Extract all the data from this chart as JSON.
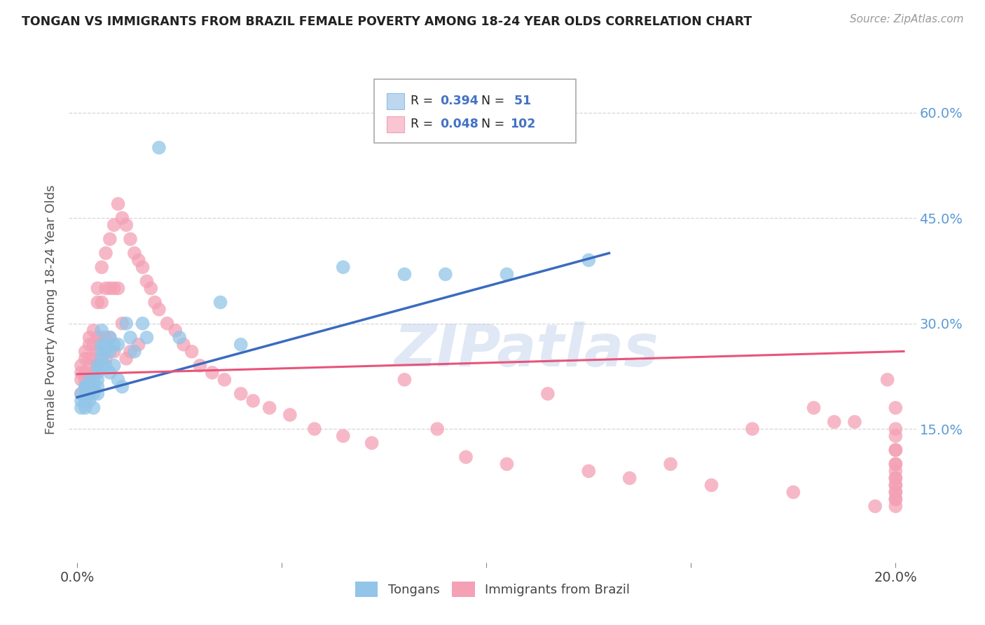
{
  "title": "TONGAN VS IMMIGRANTS FROM BRAZIL FEMALE POVERTY AMONG 18-24 YEAR OLDS CORRELATION CHART",
  "source": "Source: ZipAtlas.com",
  "ylabel": "Female Poverty Among 18-24 Year Olds",
  "watermark": "ZIPatlas",
  "tongan_color": "#92C5E8",
  "brazil_color": "#F4A0B5",
  "tongan_line_color": "#3A6BBF",
  "brazil_line_color": "#E8547A",
  "background_color": "#FFFFFF",
  "grid_color": "#CCCCCC",
  "xlim": [
    -0.002,
    0.205
  ],
  "ylim": [
    -0.04,
    0.68
  ],
  "x_ticks": [
    0.0,
    0.05,
    0.1,
    0.15,
    0.2
  ],
  "y_ticks": [
    0.15,
    0.3,
    0.45,
    0.6
  ],
  "y_tick_labels": [
    "15.0%",
    "30.0%",
    "45.0%",
    "60.0%"
  ],
  "tongan_x": [
    0.001,
    0.001,
    0.001,
    0.002,
    0.002,
    0.002,
    0.002,
    0.002,
    0.003,
    0.003,
    0.003,
    0.003,
    0.004,
    0.004,
    0.004,
    0.004,
    0.005,
    0.005,
    0.005,
    0.005,
    0.005,
    0.006,
    0.006,
    0.006,
    0.006,
    0.006,
    0.007,
    0.007,
    0.007,
    0.008,
    0.008,
    0.008,
    0.009,
    0.009,
    0.01,
    0.01,
    0.011,
    0.012,
    0.013,
    0.014,
    0.016,
    0.017,
    0.02,
    0.025,
    0.035,
    0.04,
    0.065,
    0.08,
    0.09,
    0.105,
    0.125
  ],
  "tongan_y": [
    0.2,
    0.19,
    0.18,
    0.21,
    0.21,
    0.2,
    0.19,
    0.18,
    0.22,
    0.21,
    0.2,
    0.19,
    0.22,
    0.21,
    0.2,
    0.18,
    0.24,
    0.23,
    0.22,
    0.21,
    0.2,
    0.29,
    0.27,
    0.26,
    0.25,
    0.24,
    0.27,
    0.26,
    0.24,
    0.28,
    0.26,
    0.23,
    0.27,
    0.24,
    0.27,
    0.22,
    0.21,
    0.3,
    0.28,
    0.26,
    0.3,
    0.28,
    0.55,
    0.28,
    0.33,
    0.27,
    0.38,
    0.37,
    0.37,
    0.37,
    0.39
  ],
  "brazil_x": [
    0.001,
    0.001,
    0.001,
    0.001,
    0.002,
    0.002,
    0.002,
    0.002,
    0.002,
    0.003,
    0.003,
    0.003,
    0.003,
    0.003,
    0.003,
    0.004,
    0.004,
    0.004,
    0.004,
    0.004,
    0.005,
    0.005,
    0.005,
    0.005,
    0.005,
    0.006,
    0.006,
    0.006,
    0.006,
    0.007,
    0.007,
    0.007,
    0.007,
    0.008,
    0.008,
    0.008,
    0.009,
    0.009,
    0.009,
    0.01,
    0.01,
    0.011,
    0.011,
    0.012,
    0.012,
    0.013,
    0.013,
    0.014,
    0.015,
    0.015,
    0.016,
    0.017,
    0.018,
    0.019,
    0.02,
    0.022,
    0.024,
    0.026,
    0.028,
    0.03,
    0.033,
    0.036,
    0.04,
    0.043,
    0.047,
    0.052,
    0.058,
    0.065,
    0.072,
    0.08,
    0.088,
    0.095,
    0.105,
    0.115,
    0.125,
    0.135,
    0.145,
    0.155,
    0.165,
    0.175,
    0.18,
    0.185,
    0.19,
    0.195,
    0.198,
    0.2,
    0.2,
    0.2,
    0.2,
    0.2,
    0.2,
    0.2,
    0.2,
    0.2,
    0.2,
    0.2,
    0.2,
    0.2,
    0.2,
    0.2,
    0.2,
    0.2
  ],
  "brazil_y": [
    0.24,
    0.23,
    0.22,
    0.2,
    0.26,
    0.25,
    0.23,
    0.22,
    0.2,
    0.28,
    0.27,
    0.25,
    0.24,
    0.22,
    0.2,
    0.29,
    0.27,
    0.25,
    0.23,
    0.21,
    0.35,
    0.33,
    0.28,
    0.26,
    0.24,
    0.38,
    0.33,
    0.28,
    0.25,
    0.4,
    0.35,
    0.28,
    0.25,
    0.42,
    0.35,
    0.28,
    0.44,
    0.35,
    0.26,
    0.47,
    0.35,
    0.45,
    0.3,
    0.44,
    0.25,
    0.42,
    0.26,
    0.4,
    0.39,
    0.27,
    0.38,
    0.36,
    0.35,
    0.33,
    0.32,
    0.3,
    0.29,
    0.27,
    0.26,
    0.24,
    0.23,
    0.22,
    0.2,
    0.19,
    0.18,
    0.17,
    0.15,
    0.14,
    0.13,
    0.22,
    0.15,
    0.11,
    0.1,
    0.2,
    0.09,
    0.08,
    0.1,
    0.07,
    0.15,
    0.06,
    0.18,
    0.16,
    0.16,
    0.04,
    0.22,
    0.18,
    0.15,
    0.12,
    0.1,
    0.08,
    0.07,
    0.06,
    0.05,
    0.14,
    0.12,
    0.1,
    0.09,
    0.08,
    0.07,
    0.06,
    0.05,
    0.04
  ]
}
